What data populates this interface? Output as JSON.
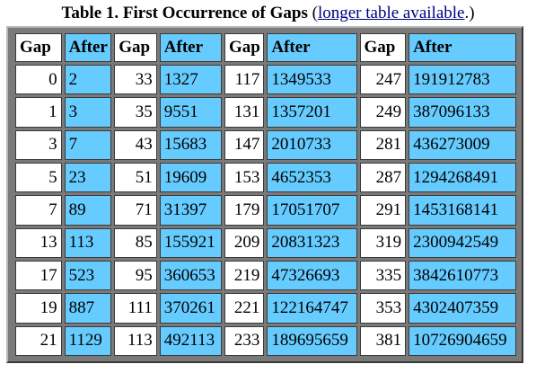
{
  "caption": {
    "title": "Table 1. First Occurrence of Gaps",
    "paren_open": " (",
    "link_text": "longer table available",
    "paren_close": ".)"
  },
  "table": {
    "headers": [
      "Gap",
      "After",
      "Gap",
      "After",
      "Gap",
      "After",
      "Gap",
      "After"
    ],
    "rows": [
      [
        "0",
        "2",
        "33",
        "1327",
        "117",
        "1349533",
        "247",
        "191912783"
      ],
      [
        "1",
        "3",
        "35",
        "9551",
        "131",
        "1357201",
        "249",
        "387096133"
      ],
      [
        "3",
        "7",
        "43",
        "15683",
        "147",
        "2010733",
        "281",
        "436273009"
      ],
      [
        "5",
        "23",
        "51",
        "19609",
        "153",
        "4652353",
        "287",
        "1294268491"
      ],
      [
        "7",
        "89",
        "71",
        "31397",
        "179",
        "17051707",
        "291",
        "1453168141"
      ],
      [
        "13",
        "113",
        "85",
        "155921",
        "209",
        "20831323",
        "319",
        "2300942549"
      ],
      [
        "17",
        "523",
        "95",
        "360653",
        "219",
        "47326693",
        "335",
        "3842610773"
      ],
      [
        "19",
        "887",
        "111",
        "370261",
        "221",
        "122164747",
        "353",
        "4302407359"
      ],
      [
        "21",
        "1129",
        "113",
        "492113",
        "233",
        "189695659",
        "381",
        "10726904659"
      ]
    ]
  },
  "colors": {
    "after_cell_bg": "#66ccff",
    "gap_cell_bg": "#ffffff",
    "frame_bg": "#7a7a7a",
    "link_color": "#000080"
  }
}
